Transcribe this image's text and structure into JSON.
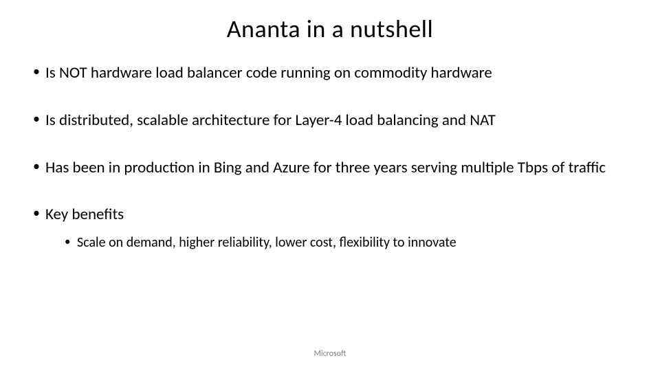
{
  "slide": {
    "title": "Ananta in a nutshell",
    "bullets": [
      {
        "text": "Is NOT hardware load balancer code running on commodity hardware",
        "level": 1
      },
      {
        "text": "Is distributed, scalable architecture for Layer-4 load balancing and NAT",
        "level": 1
      },
      {
        "text": "Has been in production in Bing and Azure for three years serving multiple Tbps of traffic",
        "level": 1
      },
      {
        "text": "Key benefits",
        "level": 1
      },
      {
        "text": "Scale on demand, higher reliability, lower cost, flexibility to innovate",
        "level": 2
      }
    ],
    "footer": "Microsoft"
  },
  "style": {
    "background_color": "#ffffff",
    "text_color": "#000000",
    "footer_color": "#808080",
    "title_fontsize": 36,
    "bullet_l1_fontsize": 23,
    "bullet_l2_fontsize": 20,
    "footer_fontsize": 12,
    "font_family": "Calibri"
  }
}
